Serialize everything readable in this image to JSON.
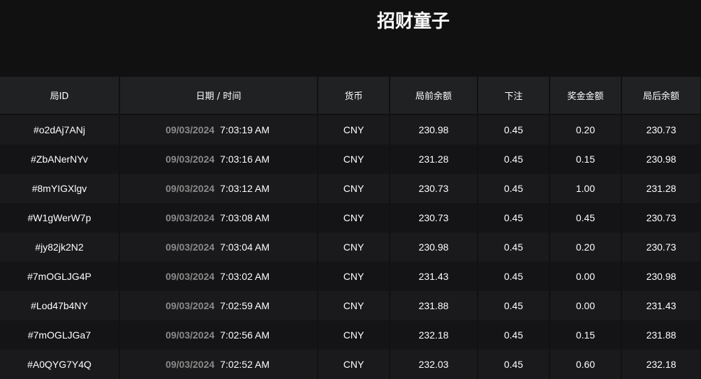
{
  "title": "招财童子",
  "columns": [
    "局ID",
    "日期 / 时间",
    "货币",
    "局前余额",
    "下注",
    "奖金金额",
    "局后余额"
  ],
  "rows": [
    {
      "id": "#o2dAj7ANj",
      "date": "09/03/2024",
      "time": "7:03:19 AM",
      "currency": "CNY",
      "before": "230.98",
      "bet": "0.45",
      "win": "0.20",
      "after": "230.73"
    },
    {
      "id": "#ZbANerNYv",
      "date": "09/03/2024",
      "time": "7:03:16 AM",
      "currency": "CNY",
      "before": "231.28",
      "bet": "0.45",
      "win": "0.15",
      "after": "230.98"
    },
    {
      "id": "#8mYIGXlgv",
      "date": "09/03/2024",
      "time": "7:03:12 AM",
      "currency": "CNY",
      "before": "230.73",
      "bet": "0.45",
      "win": "1.00",
      "after": "231.28"
    },
    {
      "id": "#W1gWerW7p",
      "date": "09/03/2024",
      "time": "7:03:08 AM",
      "currency": "CNY",
      "before": "230.73",
      "bet": "0.45",
      "win": "0.45",
      "after": "230.73"
    },
    {
      "id": "#jy82jk2N2",
      "date": "09/03/2024",
      "time": "7:03:04 AM",
      "currency": "CNY",
      "before": "230.98",
      "bet": "0.45",
      "win": "0.20",
      "after": "230.73"
    },
    {
      "id": "#7mOGLJG4P",
      "date": "09/03/2024",
      "time": "7:03:02 AM",
      "currency": "CNY",
      "before": "231.43",
      "bet": "0.45",
      "win": "0.00",
      "after": "230.98"
    },
    {
      "id": "#Lod47b4NY",
      "date": "09/03/2024",
      "time": "7:02:59 AM",
      "currency": "CNY",
      "before": "231.88",
      "bet": "0.45",
      "win": "0.00",
      "after": "231.43"
    },
    {
      "id": "#7mOGLJGa7",
      "date": "09/03/2024",
      "time": "7:02:56 AM",
      "currency": "CNY",
      "before": "232.18",
      "bet": "0.45",
      "win": "0.15",
      "after": "231.88"
    },
    {
      "id": "#A0QYG7Y4Q",
      "date": "09/03/2024",
      "time": "7:02:52 AM",
      "currency": "CNY",
      "before": "232.03",
      "bet": "0.45",
      "win": "0.60",
      "after": "232.18"
    }
  ]
}
